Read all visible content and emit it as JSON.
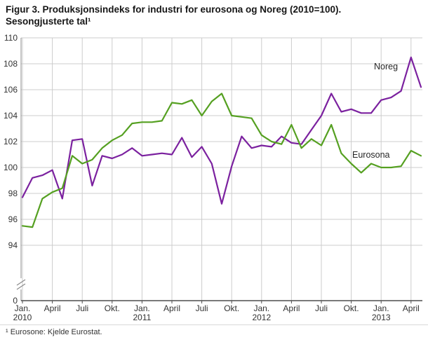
{
  "title": {
    "line1": "Figur 3. Produksjonsindeks for industri for eurosona og Noreg (2010=100).",
    "line2": "Sesongjusterte tal¹"
  },
  "footnote": "¹ Eurosone: Kjelde Eurostat.",
  "chart_data": {
    "type": "line",
    "title": "Figur 3. Produksjonsindeks for industri for eurosona og Noreg (2010=100). Sesongjusterte tal",
    "x_unit": "month",
    "x_start": "2010-01",
    "x_end": "2013-05",
    "ylim": [
      94,
      110
    ],
    "y_ticks": [
      94,
      96,
      98,
      100,
      102,
      104,
      106,
      108,
      110
    ],
    "zero_label": "0",
    "axis_break": true,
    "grid": true,
    "legend_position": "inline-labels",
    "x_tick_labels": [
      {
        "i": 0,
        "label": "Jan.",
        "year": "2010"
      },
      {
        "i": 3,
        "label": "April"
      },
      {
        "i": 6,
        "label": "Juli"
      },
      {
        "i": 9,
        "label": "Okt."
      },
      {
        "i": 12,
        "label": "Jan.",
        "year": "2011"
      },
      {
        "i": 15,
        "label": "April"
      },
      {
        "i": 18,
        "label": "Juli"
      },
      {
        "i": 21,
        "label": "Okt."
      },
      {
        "i": 24,
        "label": "Jan.",
        "year": "2012"
      },
      {
        "i": 27,
        "label": "April"
      },
      {
        "i": 30,
        "label": "Juli"
      },
      {
        "i": 33,
        "label": "Okt."
      },
      {
        "i": 36,
        "label": "Jan.",
        "year": "2013"
      },
      {
        "i": 39,
        "label": "April"
      }
    ],
    "series": [
      {
        "name": "Noreg",
        "color": "#7b219f",
        "values": [
          97.7,
          99.2,
          99.4,
          99.8,
          97.6,
          102.1,
          102.2,
          98.6,
          100.9,
          100.7,
          101.0,
          101.5,
          100.9,
          101.0,
          101.1,
          101.0,
          102.3,
          100.8,
          101.6,
          100.3,
          97.2,
          100.1,
          102.4,
          101.5,
          101.7,
          101.6,
          102.4,
          101.9,
          101.8,
          102.9,
          104.0,
          105.7,
          104.3,
          104.5,
          104.2,
          104.2,
          105.2,
          105.4,
          105.9,
          108.5,
          106.2
        ]
      },
      {
        "name": "Eurosona",
        "color": "#55a021",
        "values": [
          95.5,
          95.4,
          97.6,
          98.1,
          98.4,
          100.9,
          100.3,
          100.6,
          101.5,
          102.1,
          102.5,
          103.4,
          103.5,
          103.5,
          103.6,
          105.0,
          104.9,
          105.2,
          104.0,
          105.1,
          105.7,
          104.0,
          103.9,
          103.8,
          102.5,
          102.0,
          101.8,
          103.3,
          101.5,
          102.2,
          101.7,
          103.3,
          101.1,
          100.3,
          99.6,
          100.3,
          100.0,
          100.0,
          100.1,
          101.3,
          100.9
        ]
      }
    ],
    "colors": {
      "grid": "#cccccc",
      "axis": "#4d4d4d",
      "y_axis": "#8c8c8c",
      "tick_text": "#333333",
      "label_text": "#262626"
    }
  }
}
